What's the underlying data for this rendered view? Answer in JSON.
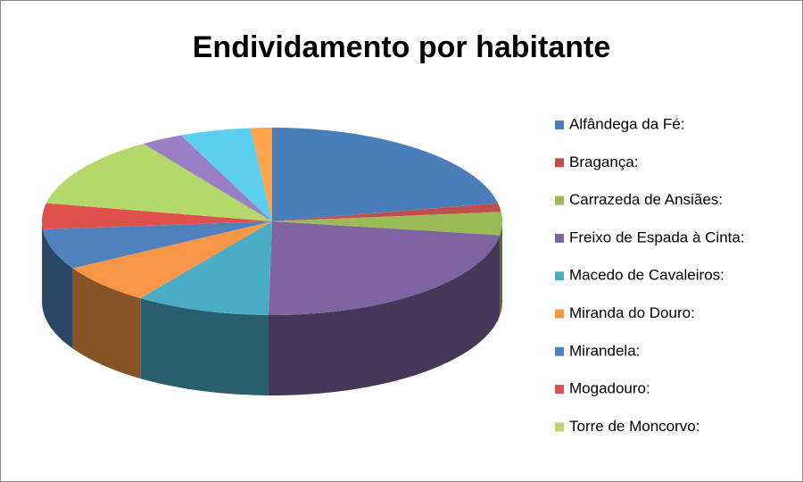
{
  "chart_data": {
    "type": "pie",
    "title": "Endividamento por habitante",
    "categories": [
      "Alfândega da Fé:",
      "Bragança:",
      "Carrazeda de Ansiães:",
      "Freixo de Espada à Cinta:",
      "Macedo de Cavaleiros:",
      "Miranda do Douro:",
      "Mirandela:",
      "Mogadouro:",
      "Torre de Moncorvo:",
      null,
      null,
      null
    ],
    "values": [
      22,
      1.5,
      4,
      23,
      9.5,
      7,
      7,
      4.5,
      12.5,
      3,
      5,
      1.5
    ],
    "colors": [
      "#4a7ebb",
      "#c0504d",
      "#9bbb59",
      "#8064a2",
      "#4bacc6",
      "#f79646",
      "#4f81bd",
      "#e0504d",
      "#b5d86a",
      "#9b7fc4",
      "#5bd0ee",
      "#ffa34d"
    ],
    "legend": "right"
  }
}
